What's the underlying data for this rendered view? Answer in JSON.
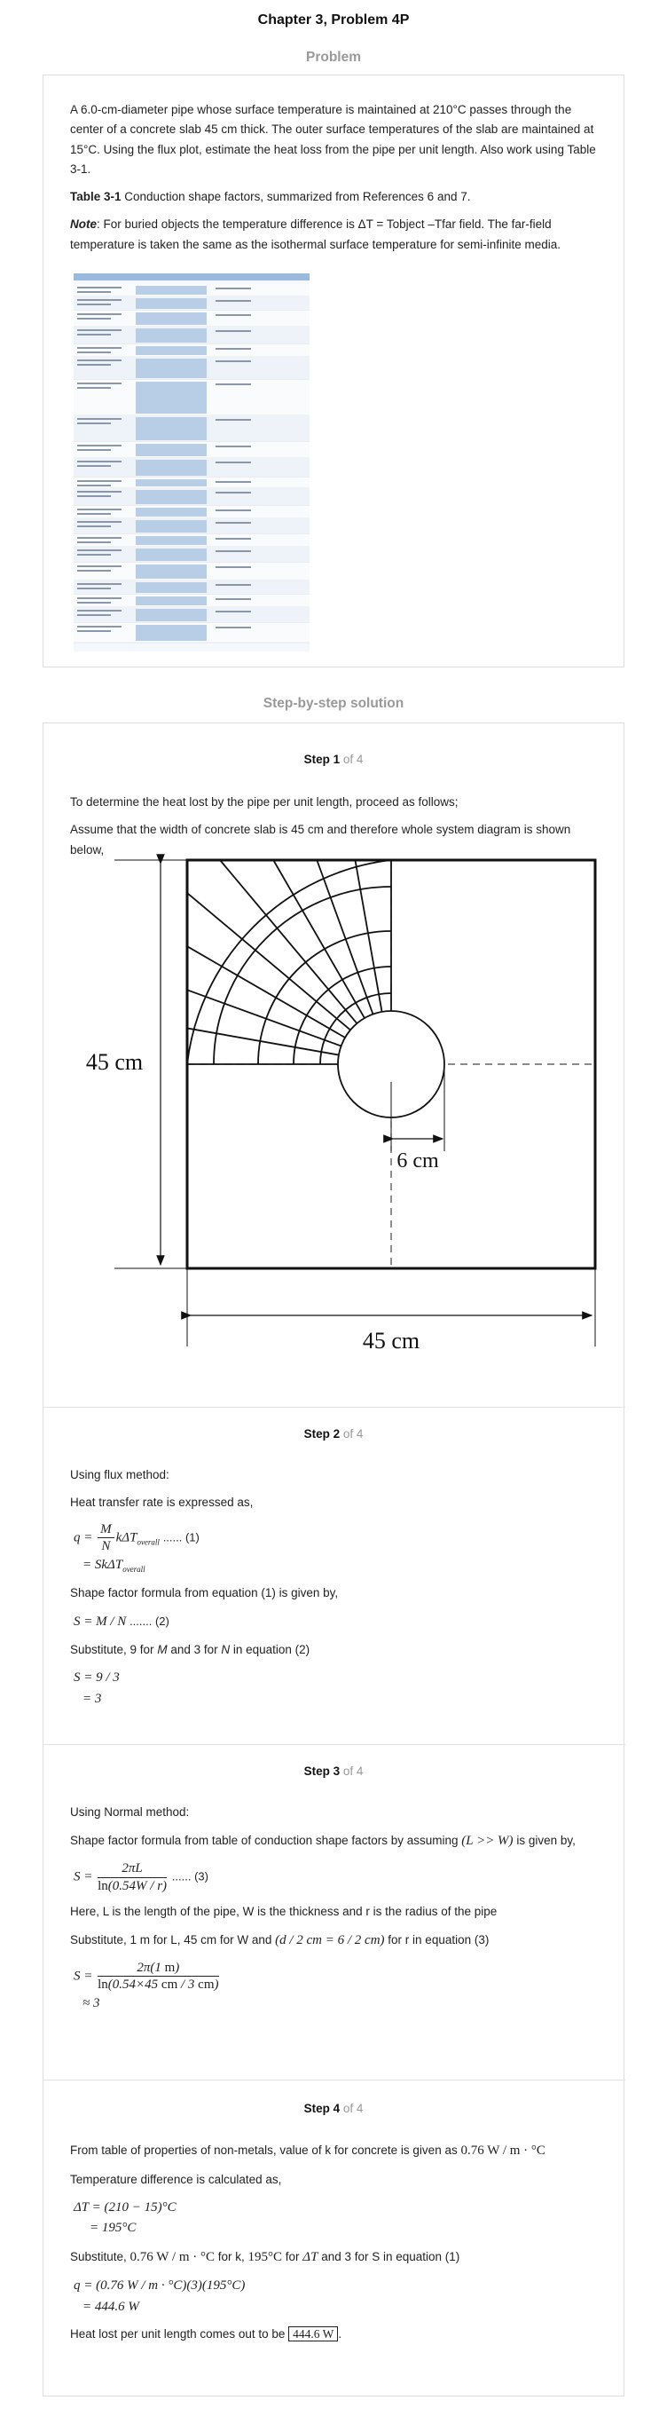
{
  "page_title": "Chapter 3, Problem 4P",
  "problem": {
    "heading": "Problem",
    "statement": "A 6.0-cm-diameter pipe whose surface temperature is maintained at 210°C passes through the center of a concrete slab 45 cm thick. The outer surface temperatures of the slab are maintained at 15°C. Using the flux plot, estimate the heat loss from the pipe per unit length. Also work using Table 3-1.",
    "table_label": "Table 3-1",
    "table_caption": " Conduction shape factors, summarized from References 6 and 7.",
    "note_label": "Note",
    "note_text": ": For buried objects the temperature difference is ΔT = Tobject –Tfar field. The far-field temperature is taken the same as the isothermal surface temperature for semi-infinite media."
  },
  "solution_heading": "Step-by-step solution",
  "steps": [
    {
      "step_word": "Step 1",
      "of_text": " of 4",
      "p1": "To determine the heat lost by the pipe per unit length, proceed as follows;",
      "p2": "Assume that the width of concrete slab is 45 cm and therefore whole system diagram is shown below,",
      "diagram": {
        "height_label": "45 cm",
        "width_label": "45 cm",
        "radius_label": "6 cm"
      }
    },
    {
      "step_word": "Step 2",
      "of_text": " of 4",
      "p1": "Using flux method:",
      "p2": "Heat transfer rate is expressed as,",
      "eq1_tag": "...... (1)",
      "p3": "Shape factor formula from equation (1) is given by,",
      "eq2": "S = M / N",
      "eq2_tag": "....... (2)",
      "p4a": "Substitute, 9 for ",
      "p4b": " and 3 for ",
      "p4c": " in equation (2)",
      "eq3_line1": "S = 9 / 3",
      "eq3_line2": "= 3"
    },
    {
      "step_word": "Step 3",
      "of_text": " of 4",
      "p1": "Using Normal method:",
      "p2a": "Shape factor formula from table of conduction shape factors by assuming ",
      "p2_cond": "(L >> W)",
      "p2b": " is given by,",
      "eq_tag": "...... (3)",
      "p3": "Here, L is the length of the pipe, W is the thickness and r is the radius of the pipe",
      "p4a": "Substitute, 1 m for L, 45 cm for W and ",
      "p4_cond": "(d / 2 cm = 6 / 2 cm)",
      "p4b": " for r in equation (3)",
      "result": "≈ 3"
    },
    {
      "step_word": "Step 4",
      "of_text": " of 4",
      "p1a": "From table of properties of non-metals, value of k for concrete is given as ",
      "p1_val": "0.76 W / m · °C",
      "p2": "Temperature difference is calculated as,",
      "dt_line1": "ΔT = (210 − 15)°C",
      "dt_line2": "= 195°C",
      "p3a": "Substitute, ",
      "p3_k": "0.76 W / m · °C",
      "p3b": " for k, ",
      "p3_t": "195°C",
      "p3c": " for ",
      "p3_dt": "ΔT",
      "p3d": " and 3 for S in equation (1)",
      "q_line1": "q = (0.76 W / m · °C)(3)(195°C)",
      "q_line2": "= 444.6 W",
      "p4": "Heat lost per unit length comes out to be ",
      "answer": "444.6 W"
    }
  ]
}
